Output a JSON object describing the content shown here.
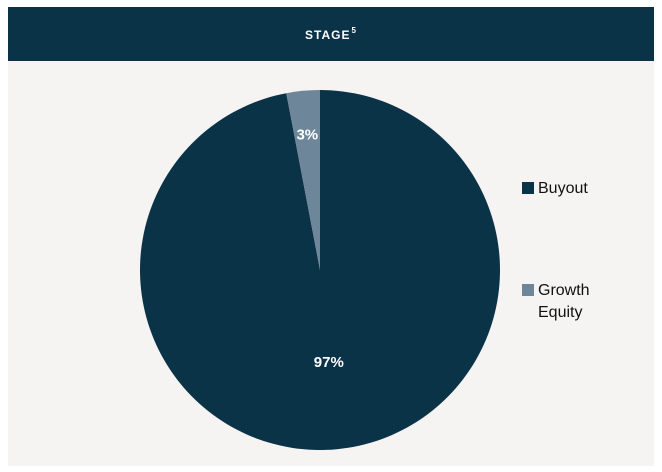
{
  "header": {
    "title": "STAGE",
    "footnote": "5"
  },
  "colors": {
    "Buyout": "#0b3347",
    "Growth Equity": "#6d8699",
    "header_bg": "#0b3347",
    "panel_bg": "#f6f4f3"
  },
  "chart_data": {
    "type": "pie",
    "title": "STAGE",
    "categories": [
      "Buyout",
      "Growth Equity"
    ],
    "values": [
      97,
      3
    ],
    "labels": [
      "97%",
      "3%"
    ],
    "legend": [
      "Buyout",
      "Growth Equity"
    ],
    "legend_position": "right"
  }
}
